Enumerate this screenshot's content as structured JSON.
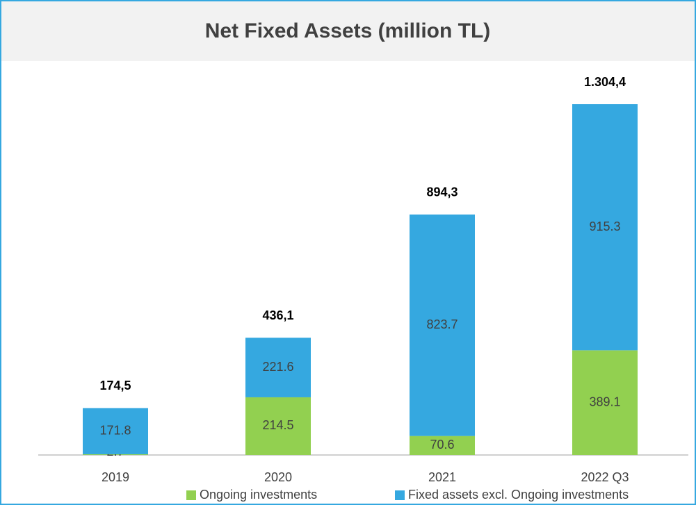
{
  "chart_data": {
    "type": "stacked_bar",
    "title": "Net Fixed Assets (million TL)",
    "categories": [
      "2019",
      "2020",
      "2021",
      "2022 Q3"
    ],
    "series": [
      {
        "name": "Ongoing investments",
        "color": "#92d050",
        "values": [
          2.7,
          214.5,
          70.6,
          389.1
        ]
      },
      {
        "name": "Fixed assets excl. Ongoing investments",
        "color": "#35a8e0",
        "values": [
          171.8,
          221.6,
          823.7,
          915.3
        ]
      }
    ],
    "totals": [
      174.5,
      436.1,
      894.3,
      1304.4
    ],
    "total_labels": [
      "174,5",
      "436,1",
      "894,3",
      "1.304,4"
    ]
  }
}
